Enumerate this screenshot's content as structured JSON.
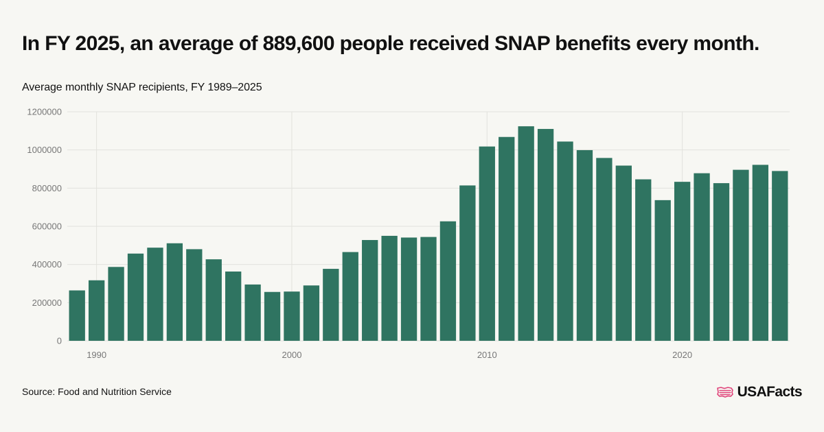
{
  "title": "In FY 2025, an average of 889,600 people received SNAP benefits every month.",
  "subtitle": "Average monthly SNAP recipients, FY 1989–2025",
  "source": "Source: Food and Nutrition Service",
  "brand": {
    "name": "USAFacts",
    "logo_icon": "us-flag-map-icon",
    "logo_color": "#e0447a"
  },
  "colors": {
    "bar": "#2f7461",
    "grid": "#e2e2dd",
    "axis_text": "#777777",
    "background": "#f7f7f3"
  },
  "chart_data": {
    "type": "bar",
    "title": "Average monthly SNAP recipients, FY 1989–2025",
    "xlabel": "",
    "ylabel": "",
    "x": [
      1989,
      1990,
      1991,
      1992,
      1993,
      1994,
      1995,
      1996,
      1997,
      1998,
      1999,
      2000,
      2001,
      2002,
      2003,
      2004,
      2005,
      2006,
      2007,
      2008,
      2009,
      2010,
      2011,
      2012,
      2013,
      2014,
      2015,
      2016,
      2017,
      2018,
      2019,
      2020,
      2021,
      2022,
      2023,
      2024,
      2025
    ],
    "values": [
      264000,
      317000,
      387000,
      457000,
      488000,
      511000,
      480000,
      427000,
      363000,
      295000,
      256000,
      258000,
      290000,
      377000,
      465000,
      528000,
      550000,
      541000,
      544000,
      626000,
      814000,
      1018000,
      1068000,
      1124000,
      1110000,
      1044000,
      999000,
      958000,
      918000,
      846000,
      737000,
      833000,
      878000,
      826000,
      896000,
      922000,
      889600
    ],
    "ylim": [
      0,
      1200000
    ],
    "yticks": [
      "0",
      "200000",
      "400000",
      "600000",
      "800000",
      "1000000",
      "1200000"
    ],
    "xticks": [
      "1990",
      "2000",
      "2010",
      "2020"
    ],
    "grid": true,
    "legend": "none"
  }
}
